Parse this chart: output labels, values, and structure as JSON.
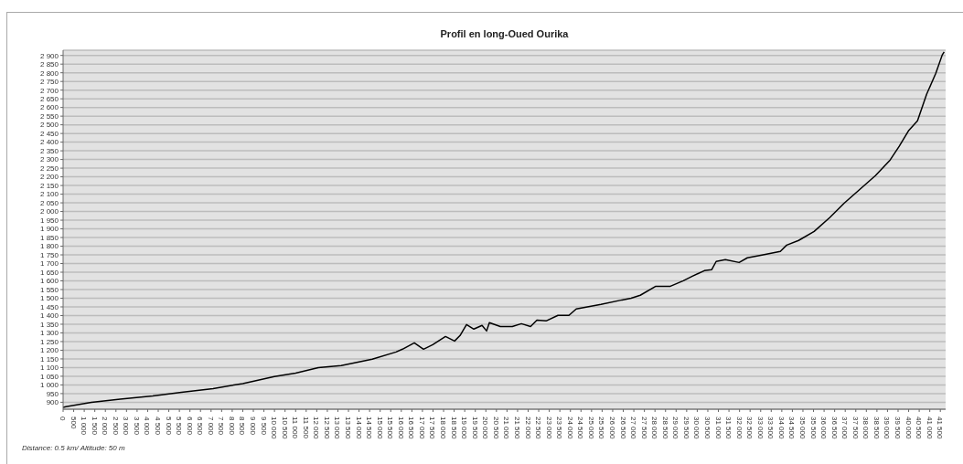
{
  "chart_data": {
    "type": "line",
    "title": "Profil en long-Oued Ourika",
    "annotations": [
      "Distance: 0.5 km/ Altitude: 50 m"
    ],
    "series": [
      {
        "color": "#000000",
        "x": [
          0,
          130,
          1340,
          2700,
          4240,
          5600,
          7095,
          8500,
          9995,
          11000,
          12075,
          13155,
          14625,
          15750,
          16055,
          16615,
          17050,
          17485,
          18090,
          18520,
          18780,
          19085,
          19430,
          19820,
          20035,
          20165,
          20685,
          21250,
          21680,
          22115,
          22415,
          22850,
          23410,
          23930,
          24275,
          25445,
          26440,
          26870,
          27305,
          28040,
          28730,
          29340,
          29770,
          30335,
          30680,
          30895,
          31330,
          31980,
          32370,
          33060,
          33930,
          34230,
          34795,
          35530,
          36265,
          36960,
          37695,
          38430,
          39125,
          39555,
          39990,
          40420,
          40850,
          41285,
          41590,
          41680
        ],
        "values": [
          870,
          874,
          900,
          918,
          937,
          958,
          979,
          1008,
          1048,
          1068,
          1100,
          1111,
          1148,
          1190,
          1206,
          1243,
          1206,
          1232,
          1279,
          1253,
          1285,
          1348,
          1322,
          1343,
          1311,
          1359,
          1337,
          1337,
          1353,
          1337,
          1374,
          1369,
          1401,
          1401,
          1438,
          1464,
          1490,
          1500,
          1517,
          1569,
          1569,
          1601,
          1627,
          1659,
          1664,
          1712,
          1722,
          1706,
          1733,
          1749,
          1770,
          1806,
          1833,
          1885,
          1965,
          2049,
          2128,
          2207,
          2297,
          2376,
          2465,
          2523,
          2676,
          2797,
          2903,
          2920
        ]
      }
    ],
    "xlim": [
      0,
      41750
    ],
    "ylim": [
      860,
      2930
    ],
    "grid": "y",
    "legend": false,
    "marker": "none",
    "line_style": "solid",
    "xticks": [
      0,
      500,
      {
        "value": 1000,
        "label": "1 000"
      },
      {
        "value": 1500,
        "label": "1 500"
      },
      {
        "value": 2000,
        "label": "2 000"
      },
      {
        "value": 2500,
        "label": "2 500"
      },
      {
        "value": 3000,
        "label": "3 000"
      },
      {
        "value": 3500,
        "label": "3 500"
      },
      {
        "value": 4000,
        "label": "4 000"
      },
      {
        "value": 4500,
        "label": "4 500"
      },
      {
        "value": 5000,
        "label": "5 000"
      },
      {
        "value": 5500,
        "label": "5 500"
      },
      {
        "value": 6000,
        "label": "6 000"
      },
      {
        "value": 6500,
        "label": "6 500"
      },
      {
        "value": 7000,
        "label": "7 000"
      },
      {
        "value": 7500,
        "label": "7 500"
      },
      {
        "value": 8000,
        "label": "8 000"
      },
      {
        "value": 8500,
        "label": "8 500"
      },
      {
        "value": 9000,
        "label": "9 000"
      },
      {
        "value": 9500,
        "label": "9 500"
      },
      {
        "value": 10000,
        "label": "10 000"
      },
      {
        "value": 10500,
        "label": "10 500"
      },
      {
        "value": 11000,
        "label": "11 000"
      },
      {
        "value": 11500,
        "label": "11 500"
      },
      {
        "value": 12000,
        "label": "12 000"
      },
      {
        "value": 12500,
        "label": "12 500"
      },
      {
        "value": 13000,
        "label": "13 000"
      },
      {
        "value": 13500,
        "label": "13 500"
      },
      {
        "value": 14000,
        "label": "14 000"
      },
      {
        "value": 14500,
        "label": "14 500"
      },
      {
        "value": 15000,
        "label": "15 000"
      },
      {
        "value": 15500,
        "label": "15 500"
      },
      {
        "value": 16000,
        "label": "16 000"
      },
      {
        "value": 16500,
        "label": "16 500"
      },
      {
        "value": 17000,
        "label": "17 000"
      },
      {
        "value": 17500,
        "label": "17 500"
      },
      {
        "value": 18000,
        "label": "18 000"
      },
      {
        "value": 18500,
        "label": "18 500"
      },
      {
        "value": 19000,
        "label": "19 000"
      },
      {
        "value": 19500,
        "label": "19 500"
      },
      {
        "value": 20000,
        "label": "20 000"
      },
      {
        "value": 20500,
        "label": "20 500"
      },
      {
        "value": 21000,
        "label": "21 000"
      },
      {
        "value": 21500,
        "label": "21 500"
      },
      {
        "value": 22000,
        "label": "22 000"
      },
      {
        "value": 22500,
        "label": "22 500"
      },
      {
        "value": 23000,
        "label": "23 000"
      },
      {
        "value": 23500,
        "label": "23 500"
      },
      {
        "value": 24000,
        "label": "24 000"
      },
      {
        "value": 24500,
        "label": "24 500"
      },
      {
        "value": 25000,
        "label": "25 000"
      },
      {
        "value": 25500,
        "label": "25 500"
      },
      {
        "value": 26000,
        "label": "26 000"
      },
      {
        "value": 26500,
        "label": "26 500"
      },
      {
        "value": 27000,
        "label": "27 000"
      },
      {
        "value": 27500,
        "label": "27 500"
      },
      {
        "value": 28000,
        "label": "28 000"
      },
      {
        "value": 28500,
        "label": "28 500"
      },
      {
        "value": 29000,
        "label": "29 000"
      },
      {
        "value": 29500,
        "label": "29 500"
      },
      {
        "value": 30000,
        "label": "30 000"
      },
      {
        "value": 30500,
        "label": "30 500"
      },
      {
        "value": 31000,
        "label": "31 000"
      },
      {
        "value": 31500,
        "label": "31 500"
      },
      {
        "value": 32000,
        "label": "32 000"
      },
      {
        "value": 32500,
        "label": "32 500"
      },
      {
        "value": 33000,
        "label": "33 000"
      },
      {
        "value": 33500,
        "label": "33 500"
      },
      {
        "value": 34000,
        "label": "34 000"
      },
      {
        "value": 34500,
        "label": "34 500"
      },
      {
        "value": 35000,
        "label": "35 000"
      },
      {
        "value": 35500,
        "label": "35 500"
      },
      {
        "value": 36000,
        "label": "36 000"
      },
      {
        "value": 36500,
        "label": "36 500"
      },
      {
        "value": 37000,
        "label": "37 000"
      },
      {
        "value": 37500,
        "label": "37 500"
      },
      {
        "value": 38000,
        "label": "38 000"
      },
      {
        "value": 38500,
        "label": "38 500"
      },
      {
        "value": 39000,
        "label": "39 000"
      },
      {
        "value": 39500,
        "label": "39 500"
      },
      {
        "value": 40000,
        "label": "40 000"
      },
      {
        "value": 40500,
        "label": "40 500"
      },
      {
        "value": 41000,
        "label": "41 000"
      },
      {
        "value": 41500,
        "label": "41 500"
      }
    ],
    "yticks": [
      900,
      950,
      {
        "value": 1000,
        "label": "1 000"
      },
      {
        "value": 1050,
        "label": "1 050"
      },
      {
        "value": 1100,
        "label": "1 100"
      },
      {
        "value": 1150,
        "label": "1 150"
      },
      {
        "value": 1200,
        "label": "1 200"
      },
      {
        "value": 1250,
        "label": "1 250"
      },
      {
        "value": 1300,
        "label": "1 300"
      },
      {
        "value": 1350,
        "label": "1 350"
      },
      {
        "value": 1400,
        "label": "1 400"
      },
      {
        "value": 1450,
        "label": "1 450"
      },
      {
        "value": 1500,
        "label": "1 500"
      },
      {
        "value": 1550,
        "label": "1 550"
      },
      {
        "value": 1600,
        "label": "1 600"
      },
      {
        "value": 1650,
        "label": "1 650"
      },
      {
        "value": 1700,
        "label": "1 700"
      },
      {
        "value": 1750,
        "label": "1 750"
      },
      {
        "value": 1800,
        "label": "1 800"
      },
      {
        "value": 1850,
        "label": "1 850"
      },
      {
        "value": 1900,
        "label": "1 900"
      },
      {
        "value": 1950,
        "label": "1 950"
      },
      {
        "value": 2000,
        "label": "2 000"
      },
      {
        "value": 2050,
        "label": "2 050"
      },
      {
        "value": 2100,
        "label": "2 100"
      },
      {
        "value": 2150,
        "label": "2 150"
      },
      {
        "value": 2200,
        "label": "2 200"
      },
      {
        "value": 2250,
        "label": "2 250"
      },
      {
        "value": 2300,
        "label": "2 300"
      },
      {
        "value": 2350,
        "label": "2 350"
      },
      {
        "value": 2400,
        "label": "2 400"
      },
      {
        "value": 2450,
        "label": "2 450"
      },
      {
        "value": 2500,
        "label": "2 500"
      },
      {
        "value": 2550,
        "label": "2 550"
      },
      {
        "value": 2600,
        "label": "2 600"
      },
      {
        "value": 2650,
        "label": "2 650"
      },
      {
        "value": 2700,
        "label": "2 700"
      },
      {
        "value": 2750,
        "label": "2 750"
      },
      {
        "value": 2800,
        "label": "2 800"
      },
      {
        "value": 2850,
        "label": "2 850"
      },
      {
        "value": 2900,
        "label": "2 900"
      }
    ]
  }
}
